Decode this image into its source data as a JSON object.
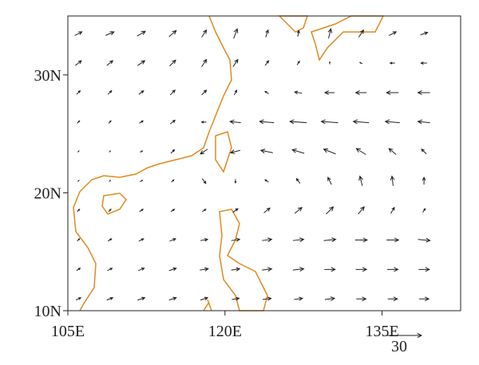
{
  "map": {
    "xlim": [
      105,
      142.5
    ],
    "ylim": [
      10,
      35
    ],
    "xticks": [
      {
        "value": 105,
        "label": "105E"
      },
      {
        "value": 120,
        "label": "120E"
      },
      {
        "value": 135,
        "label": "135E"
      }
    ],
    "yticks": [
      {
        "value": 10,
        "label": "10N"
      },
      {
        "value": 20,
        "label": "20N"
      },
      {
        "value": 30,
        "label": "30N"
      }
    ],
    "reference_vector": {
      "value": 30,
      "label": "30"
    },
    "wind": {
      "lon": [
        106,
        109,
        112,
        115,
        118,
        121,
        124,
        127,
        130,
        133,
        136,
        139
      ],
      "lat": [
        11,
        13.5,
        16,
        18.5,
        21,
        23.5,
        26,
        28.5,
        31,
        33.5
      ],
      "u": [
        [
          4,
          5,
          6,
          6,
          6,
          6,
          7,
          7,
          8,
          8,
          8,
          8
        ],
        [
          3,
          4,
          5,
          6,
          7,
          7,
          8,
          9,
          9,
          9,
          9,
          9
        ],
        [
          2,
          3,
          4,
          5,
          6,
          7,
          8,
          9,
          10,
          10,
          10,
          10
        ],
        [
          2,
          2,
          3,
          3,
          3,
          4,
          5,
          6,
          6,
          5,
          3,
          2
        ],
        [
          1,
          1,
          2,
          2,
          3,
          0,
          -3,
          -3,
          -3,
          -2,
          -1,
          0
        ],
        [
          1,
          1,
          2,
          3,
          -6,
          -8,
          -10,
          -10,
          -10,
          -8,
          -6,
          -4
        ],
        [
          2,
          2,
          3,
          4,
          -4,
          -9,
          -12,
          -14,
          -14,
          -13,
          -12,
          -10
        ],
        [
          3,
          3,
          4,
          4,
          4,
          2,
          -3,
          -6,
          -8,
          -9,
          -10,
          -10
        ],
        [
          5,
          5,
          6,
          5,
          4,
          4,
          3,
          2,
          0,
          -2,
          -4,
          -5
        ],
        [
          6,
          7,
          7,
          6,
          4,
          3,
          2,
          1,
          2,
          4,
          6,
          6
        ]
      ],
      "v": [
        [
          2,
          2,
          2,
          2,
          2,
          1,
          1,
          1,
          1,
          0,
          0,
          0
        ],
        [
          2,
          2,
          2,
          2,
          1,
          1,
          1,
          1,
          0,
          0,
          0,
          0
        ],
        [
          2,
          2,
          2,
          2,
          1,
          1,
          1,
          1,
          1,
          0,
          0,
          -1
        ],
        [
          2,
          2,
          2,
          2,
          2,
          3,
          4,
          5,
          6,
          6,
          5,
          3
        ],
        [
          1,
          1,
          1,
          2,
          -4,
          -3,
          2,
          4,
          6,
          8,
          8,
          6
        ],
        [
          1,
          1,
          1,
          3,
          -4,
          -2,
          2,
          3,
          4,
          5,
          5,
          4
        ],
        [
          2,
          2,
          2,
          3,
          0,
          1,
          1,
          1,
          1,
          1,
          1,
          1
        ],
        [
          3,
          3,
          3,
          4,
          4,
          4,
          2,
          1,
          0,
          0,
          0,
          0
        ],
        [
          4,
          4,
          4,
          5,
          6,
          6,
          4,
          3,
          2,
          1,
          0,
          0
        ],
        [
          3,
          3,
          4,
          5,
          6,
          8,
          6,
          5,
          8,
          6,
          3,
          2
        ]
      ]
    }
  }
}
